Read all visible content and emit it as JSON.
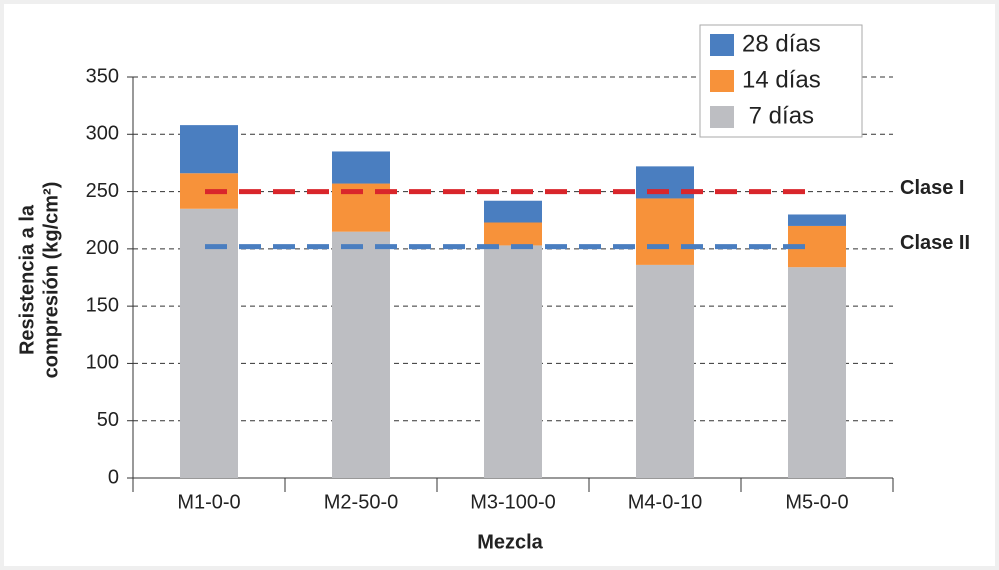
{
  "chart_data": {
    "type": "stacked_bar",
    "xlabel": "Mezcla",
    "ylabel": [
      "Resistencia a la",
      "compresión (kg/cm²)"
    ],
    "categories": [
      "M1-0-0",
      "M2-50-0",
      "M3-100-0",
      "M4-0-10",
      "M5-0-0"
    ],
    "series": [
      {
        "name": " 7 días",
        "color": "#bdbec2",
        "values": [
          235,
          215,
          203,
          186,
          184
        ]
      },
      {
        "name": "14 días",
        "color": "#f7923a",
        "values": [
          31,
          42,
          20,
          58,
          36
        ]
      },
      {
        "name": "28 días",
        "color": "#4a7ec0",
        "values": [
          42,
          28,
          19,
          28,
          10
        ]
      }
    ],
    "reference_lines": [
      {
        "label": "Clase I",
        "value": 250,
        "color": "#d9262b"
      },
      {
        "label": "Clase II",
        "value": 202,
        "color": "#4a7ec0"
      }
    ],
    "ylim": [
      0,
      350
    ],
    "yticks": [
      0,
      50,
      100,
      150,
      200,
      250,
      300,
      350
    ],
    "grid": true,
    "legend": "top-right"
  }
}
